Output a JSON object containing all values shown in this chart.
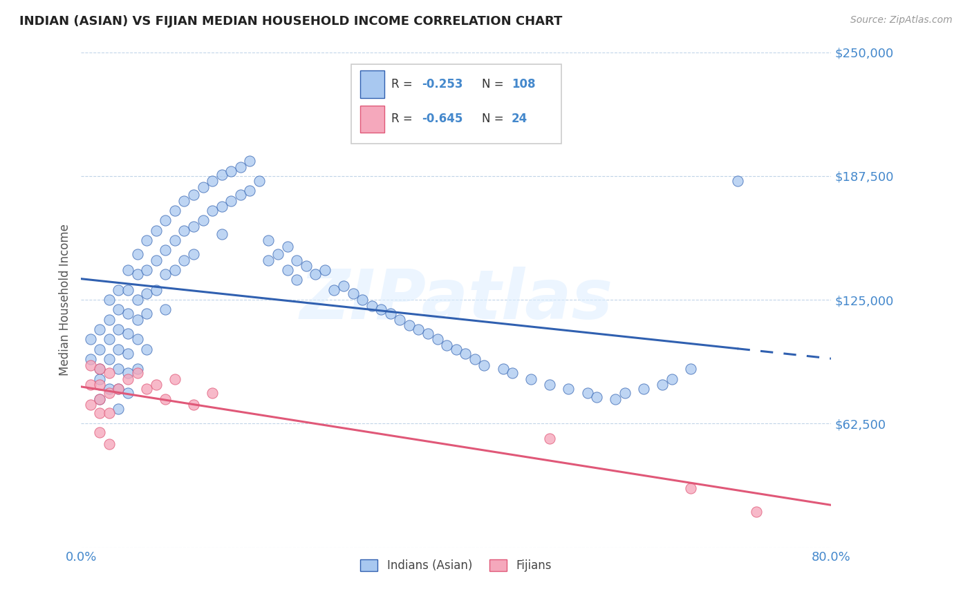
{
  "title": "INDIAN (ASIAN) VS FIJIAN MEDIAN HOUSEHOLD INCOME CORRELATION CHART",
  "source_text": "Source: ZipAtlas.com",
  "ylabel": "Median Household Income",
  "xlim": [
    0.0,
    0.8
  ],
  "ylim": [
    0,
    250000
  ],
  "yticks": [
    0,
    62500,
    125000,
    187500,
    250000
  ],
  "ytick_labels": [
    "",
    "$62,500",
    "$125,000",
    "$187,500",
    "$250,000"
  ],
  "xtick_labels": [
    "0.0%",
    "80.0%"
  ],
  "indian_color": "#a8c8f0",
  "fijian_color": "#f5a8bc",
  "indian_line_color": "#3060b0",
  "fijian_line_color": "#e05878",
  "watermark": "ZIPatlas",
  "background_color": "#ffffff",
  "grid_color": "#c0d4e8",
  "title_color": "#222222",
  "axis_label_color": "#555555",
  "tick_label_color": "#4488cc",
  "legend_label1": "Indians (Asian)",
  "legend_label2": "Fijians",
  "indian_scatter_x": [
    0.01,
    0.01,
    0.02,
    0.02,
    0.02,
    0.02,
    0.02,
    0.03,
    0.03,
    0.03,
    0.03,
    0.03,
    0.04,
    0.04,
    0.04,
    0.04,
    0.04,
    0.04,
    0.04,
    0.05,
    0.05,
    0.05,
    0.05,
    0.05,
    0.05,
    0.05,
    0.06,
    0.06,
    0.06,
    0.06,
    0.06,
    0.06,
    0.07,
    0.07,
    0.07,
    0.07,
    0.07,
    0.08,
    0.08,
    0.08,
    0.09,
    0.09,
    0.09,
    0.09,
    0.1,
    0.1,
    0.1,
    0.11,
    0.11,
    0.11,
    0.12,
    0.12,
    0.12,
    0.13,
    0.13,
    0.14,
    0.14,
    0.15,
    0.15,
    0.15,
    0.16,
    0.16,
    0.17,
    0.17,
    0.18,
    0.18,
    0.19,
    0.2,
    0.2,
    0.21,
    0.22,
    0.22,
    0.23,
    0.23,
    0.24,
    0.25,
    0.26,
    0.27,
    0.28,
    0.29,
    0.3,
    0.31,
    0.32,
    0.33,
    0.34,
    0.35,
    0.36,
    0.37,
    0.38,
    0.39,
    0.4,
    0.41,
    0.42,
    0.43,
    0.45,
    0.46,
    0.48,
    0.5,
    0.52,
    0.54,
    0.55,
    0.57,
    0.58,
    0.6,
    0.62,
    0.63,
    0.65,
    0.7
  ],
  "indian_scatter_y": [
    105000,
    95000,
    110000,
    100000,
    90000,
    85000,
    75000,
    125000,
    115000,
    105000,
    95000,
    80000,
    130000,
    120000,
    110000,
    100000,
    90000,
    80000,
    70000,
    140000,
    130000,
    118000,
    108000,
    98000,
    88000,
    78000,
    148000,
    138000,
    125000,
    115000,
    105000,
    90000,
    155000,
    140000,
    128000,
    118000,
    100000,
    160000,
    145000,
    130000,
    165000,
    150000,
    138000,
    120000,
    170000,
    155000,
    140000,
    175000,
    160000,
    145000,
    178000,
    162000,
    148000,
    182000,
    165000,
    185000,
    170000,
    188000,
    172000,
    158000,
    190000,
    175000,
    192000,
    178000,
    195000,
    180000,
    185000,
    155000,
    145000,
    148000,
    152000,
    140000,
    145000,
    135000,
    142000,
    138000,
    140000,
    130000,
    132000,
    128000,
    125000,
    122000,
    120000,
    118000,
    115000,
    112000,
    110000,
    108000,
    105000,
    102000,
    100000,
    98000,
    95000,
    92000,
    90000,
    88000,
    85000,
    82000,
    80000,
    78000,
    76000,
    75000,
    78000,
    80000,
    82000,
    85000,
    90000,
    185000
  ],
  "fijian_scatter_x": [
    0.01,
    0.01,
    0.01,
    0.02,
    0.02,
    0.02,
    0.02,
    0.02,
    0.03,
    0.03,
    0.03,
    0.03,
    0.04,
    0.05,
    0.06,
    0.07,
    0.08,
    0.09,
    0.1,
    0.12,
    0.14,
    0.5,
    0.65,
    0.72
  ],
  "fijian_scatter_y": [
    92000,
    82000,
    72000,
    90000,
    82000,
    75000,
    68000,
    58000,
    88000,
    78000,
    68000,
    52000,
    80000,
    85000,
    88000,
    80000,
    82000,
    75000,
    85000,
    72000,
    78000,
    55000,
    30000,
    18000
  ]
}
